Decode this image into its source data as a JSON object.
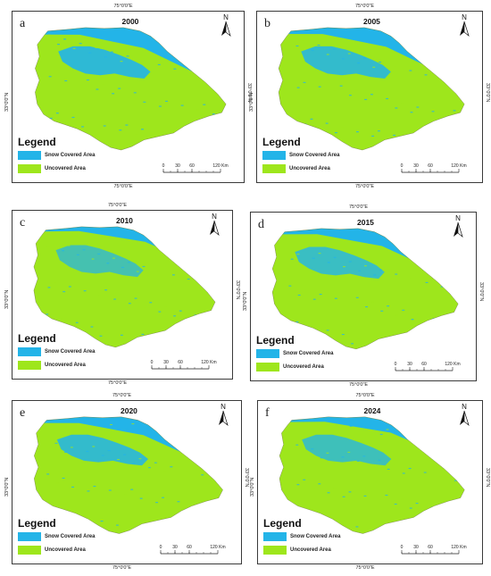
{
  "colors": {
    "snow": "#23b4e8",
    "uncovered": "#9ee61c"
  },
  "grid": {
    "lon_label": "75°0'0\"E",
    "lat_label": "33°0'0\"N"
  },
  "legend": {
    "title": "Legend",
    "snow_label": "Snow Covered Area",
    "uncovered_label": "Uncovered Area"
  },
  "scale": {
    "ticks": [
      "0",
      "30",
      "60",
      "120 Km"
    ]
  },
  "north_label": "N",
  "panels": [
    {
      "label": "a",
      "year": "2000",
      "snow_fraction": 0.4
    },
    {
      "label": "b",
      "year": "2005",
      "snow_fraction": 0.35
    },
    {
      "label": "c",
      "year": "2010",
      "snow_fraction": 0.2
    },
    {
      "label": "d",
      "year": "2015",
      "snow_fraction": 0.3
    },
    {
      "label": "e",
      "year": "2020",
      "snow_fraction": 0.35
    },
    {
      "label": "f",
      "year": "2024",
      "snow_fraction": 0.25
    }
  ]
}
